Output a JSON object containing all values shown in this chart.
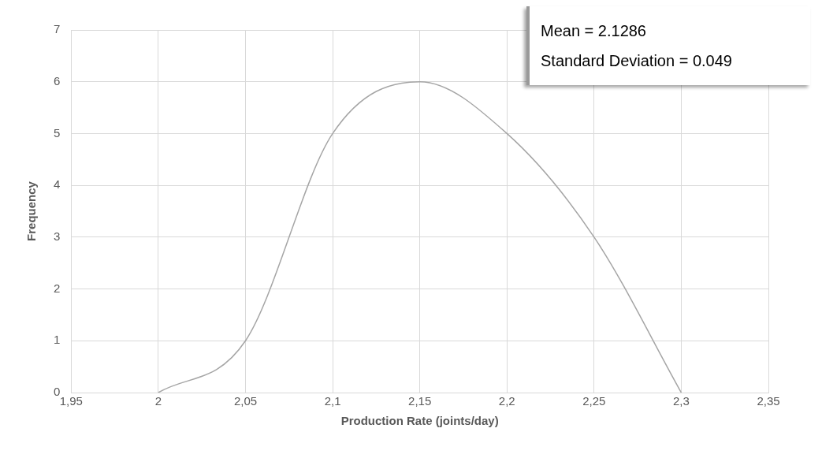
{
  "chart_data": {
    "type": "line",
    "xlabel": "Production Rate (joints/day)",
    "ylabel": "Frequency",
    "x": [
      2,
      2.05,
      2.1,
      2.15,
      2.2,
      2.25,
      2.3
    ],
    "series": [
      {
        "color": "#a5a5a5",
        "values": [
          0,
          1,
          5,
          6,
          5,
          3,
          0
        ]
      }
    ],
    "xlim": [
      1.95,
      2.35
    ],
    "xticks": [
      {
        "value": 1.95,
        "label": "1,95"
      },
      2,
      {
        "value": 2.05,
        "label": "2,05"
      },
      {
        "value": 2.1,
        "label": "2,1"
      },
      {
        "value": 2.15,
        "label": "2,15"
      },
      {
        "value": 2.2,
        "label": "2,2"
      },
      {
        "value": 2.25,
        "label": "2,25"
      },
      {
        "value": 2.3,
        "label": "2,3"
      },
      {
        "value": 2.35,
        "label": "2,35"
      }
    ],
    "ylim": [
      0,
      7
    ],
    "yticks": [
      0,
      1,
      2,
      3,
      4,
      5,
      6,
      7
    ],
    "grid": true,
    "legend": false,
    "marker": "none",
    "line_style": "solid",
    "annotations": [
      "Mean = 2.1286",
      "Standard Deviation = 0.049"
    ]
  }
}
